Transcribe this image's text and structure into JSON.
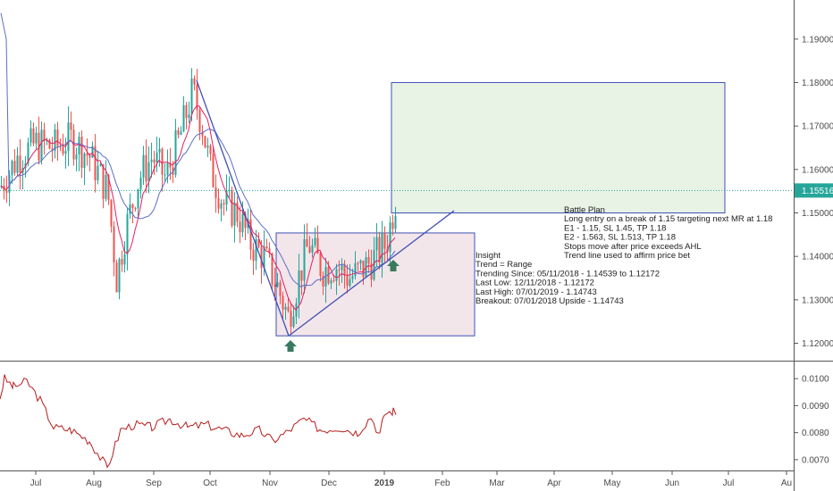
{
  "colors": {
    "up": "#26a69a",
    "down": "#ef5350",
    "ma_fast": "#e91e63",
    "ma_slow": "#5b6ec7",
    "trend": "#3f51b5",
    "indicator": "#b71c1c",
    "target_fill": "#e8f3e6",
    "target_stroke": "#3f51b5",
    "range_fill": "#f3e6ea",
    "range_stroke": "#3f51b5",
    "price_label_bg": "#26a69a",
    "arrow_fill": "#3a7a5e",
    "grid": "#555555",
    "last_price_line": "#26a69a"
  },
  "chart_data": {
    "type": "candlestick",
    "price_axis": {
      "ticks": [
        "1.19000",
        "1.18000",
        "1.17000",
        "1.16000",
        "1.15000",
        "1.14000",
        "1.13000",
        "1.12000"
      ],
      "ylim": [
        1.116,
        1.199
      ],
      "last_price": "1.15516"
    },
    "time_axis": {
      "labels": [
        {
          "text": "Jul",
          "bold": false
        },
        {
          "text": "Aug",
          "bold": false
        },
        {
          "text": "Sep",
          "bold": false
        },
        {
          "text": "Oct",
          "bold": false
        },
        {
          "text": "Nov",
          "bold": false
        },
        {
          "text": "Dec",
          "bold": false
        },
        {
          "text": "2019",
          "bold": true
        },
        {
          "text": "Feb",
          "bold": false
        },
        {
          "text": "Mar",
          "bold": false
        },
        {
          "text": "Apr",
          "bold": false
        },
        {
          "text": "May",
          "bold": false
        },
        {
          "text": "Jun",
          "bold": false
        },
        {
          "text": "Jul",
          "bold": false
        },
        {
          "text": "Au",
          "bold": false
        }
      ]
    },
    "indicator_axis": {
      "ticks": [
        "0.0100",
        "0.0090",
        "0.0080",
        "0.0070"
      ],
      "ylim": [
        0.0066,
        0.0106
      ]
    },
    "range_box": {
      "top": 1.14539,
      "bottom": 1.12172
    },
    "target_box": {
      "top": 1.18,
      "bottom": 1.15
    },
    "battle_plan": {
      "lines": [
        "Battle Plan",
        "Long entry on a break of 1.15 targeting next MR at 1.18",
        "E1 - 1.15, SL 1.45, TP 1.18",
        "E2 - 1.563, SL 1.513, TP 1.18",
        "Stops move after price exceeds AHL",
        "Trend line used to affirm price bet"
      ]
    },
    "insight": {
      "lines": [
        "Insight",
        "Trend = Range",
        "Trending Since: 05/11/2018 - 1.14539 to 1.12172",
        "Last Low: 12/11/2018 - 1.12172",
        "Last High: 07/01/2019 - 1.14743",
        "Breakout: 07/01/2018 Upside - 1.14743"
      ]
    }
  }
}
